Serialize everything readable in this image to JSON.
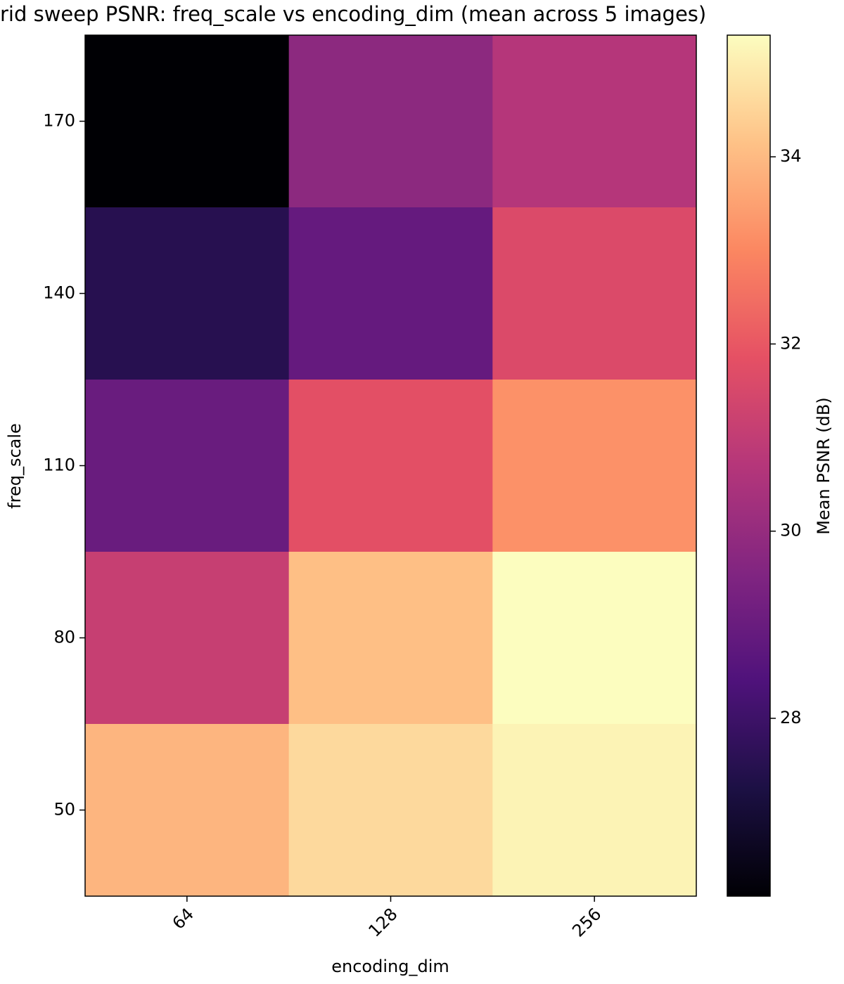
{
  "chart_data": {
    "type": "heatmap",
    "title": "rid sweep PSNR: freq_scale vs encoding_dim (mean across 5 images)",
    "x_label": "encoding_dim",
    "y_label": "freq_scale",
    "x_categories": [
      64,
      128,
      256
    ],
    "y_categories": [
      170,
      140,
      110,
      80,
      50
    ],
    "values": [
      [
        26.1,
        29.8,
        30.7
      ],
      [
        27.5,
        28.9,
        31.6
      ],
      [
        29.0,
        31.8,
        33.2
      ],
      [
        31.1,
        34.1,
        35.3
      ],
      [
        33.9,
        34.6,
        35.1
      ]
    ],
    "colormap": "magma",
    "clim": [
      26.1,
      35.3
    ],
    "colorbar_ticks": [
      28,
      30,
      32,
      34
    ],
    "colorbar_label": "Mean PSNR (dB)"
  }
}
